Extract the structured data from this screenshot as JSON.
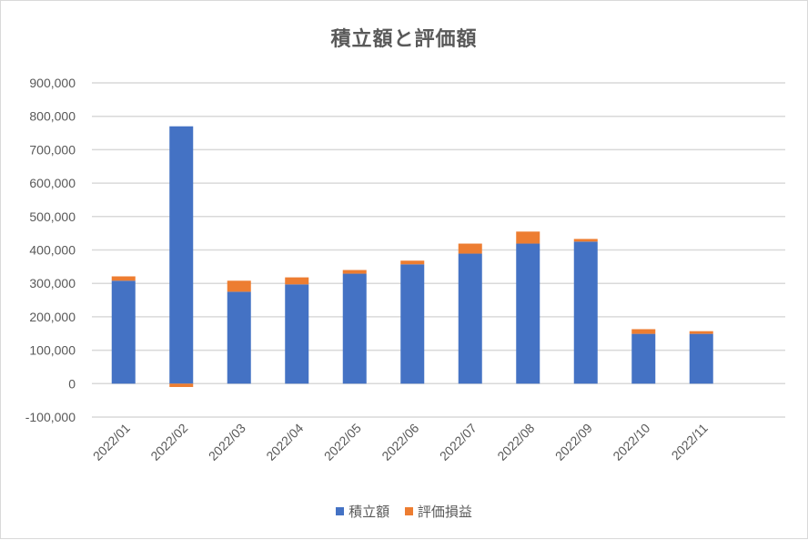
{
  "chart_data": {
    "type": "bar",
    "stacked": true,
    "title": "積立額と評価額",
    "xlabel": "",
    "ylabel": "",
    "categories": [
      "2022/01",
      "2022/02",
      "2022/03",
      "2022/04",
      "2022/05",
      "2022/06",
      "2022/07",
      "2022/08",
      "2022/09",
      "2022/10",
      "2022/11"
    ],
    "series": [
      {
        "name": "積立額",
        "color": "#4472c4",
        "values": [
          308000,
          770000,
          275000,
          297000,
          329000,
          357000,
          389000,
          419000,
          425000,
          149000,
          149000
        ]
      },
      {
        "name": "評価損益",
        "color": "#ed7d31",
        "values": [
          13000,
          -10000,
          33000,
          21000,
          11000,
          11000,
          30000,
          36000,
          8000,
          14000,
          8000
        ]
      }
    ],
    "ylim": [
      -100000,
      900000
    ],
    "yticks": [
      -100000,
      0,
      100000,
      200000,
      300000,
      400000,
      500000,
      600000,
      700000,
      800000,
      900000
    ],
    "ytick_labels": [
      "-100,000",
      "0",
      "100,000",
      "200,000",
      "300,000",
      "400,000",
      "500,000",
      "600,000",
      "700,000",
      "800,000",
      "900,000"
    ],
    "negative_tick_color": "#ff0000",
    "grid": true,
    "legend": "bottom"
  }
}
